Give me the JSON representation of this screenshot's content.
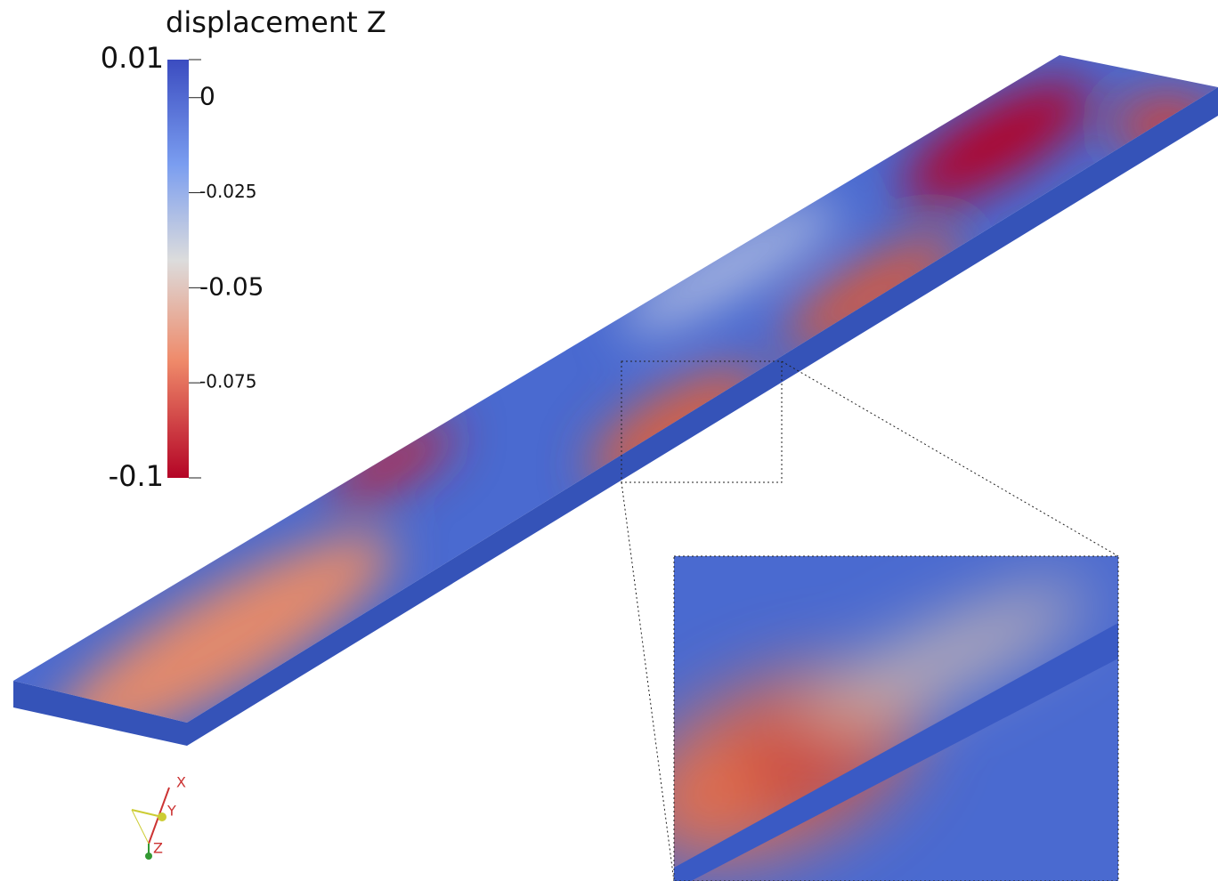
{
  "legend": {
    "title": "displacement Z",
    "range": [
      -0.1,
      0.01
    ],
    "ticks": [
      0,
      -0.025,
      -0.05,
      -0.075
    ]
  },
  "axes": {
    "x": "X",
    "y": "Y",
    "z": "Z"
  }
}
